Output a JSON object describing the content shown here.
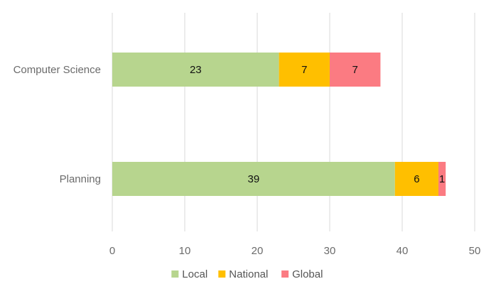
{
  "chart_data": {
    "type": "bar",
    "orientation": "horizontal",
    "stacked": true,
    "categories": [
      "Computer Science",
      "Planning"
    ],
    "series": [
      {
        "name": "Local",
        "values": [
          23,
          39
        ],
        "color": "#b7d58e"
      },
      {
        "name": "National",
        "values": [
          7,
          6
        ],
        "color": "#ffbf00"
      },
      {
        "name": "Global",
        "values": [
          7,
          1
        ],
        "color": "#fb7b82"
      }
    ],
    "xlim": [
      0,
      50
    ],
    "x_ticks": [
      0,
      10,
      20,
      30,
      40,
      50
    ],
    "grid": "vertical",
    "legend_position": "bottom",
    "data_labels": true,
    "title": "",
    "xlabel": "",
    "ylabel": ""
  }
}
